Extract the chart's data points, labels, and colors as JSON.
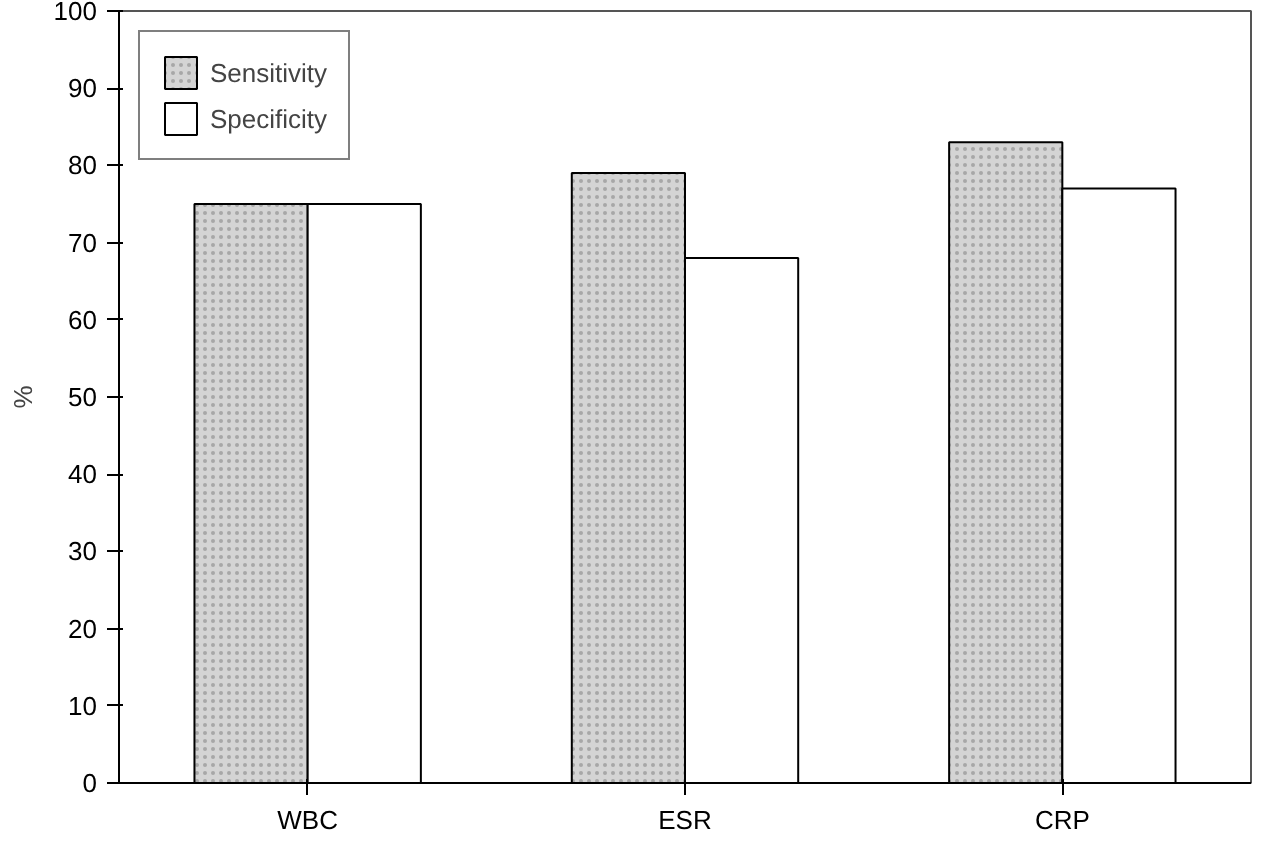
{
  "chart_data": {
    "type": "bar",
    "ylabel": "%",
    "categories": [
      "WBC",
      "ESR",
      "CRP"
    ],
    "series": [
      {
        "name": "Sensitivity",
        "color": "#d4d4d4",
        "values": [
          75,
          79,
          83
        ]
      },
      {
        "name": "Specificity",
        "color": "#ffffff",
        "values": [
          75,
          68,
          77
        ]
      }
    ],
    "ylim": [
      0,
      100
    ],
    "yticks": [
      0,
      10,
      20,
      30,
      40,
      50,
      60,
      70,
      80,
      90,
      100
    ],
    "grid": false,
    "legend": "top left"
  }
}
